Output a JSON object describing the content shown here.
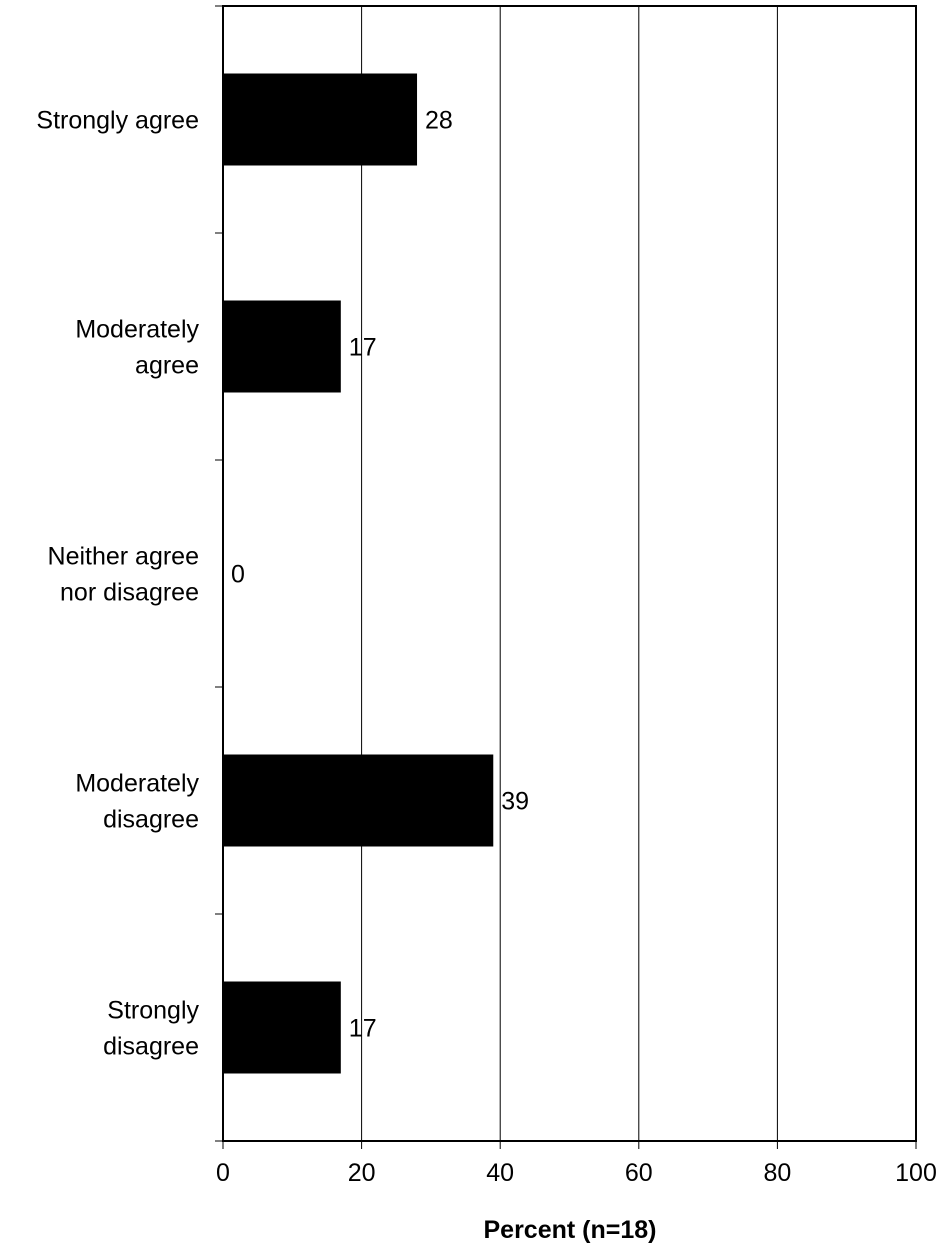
{
  "chart_data": {
    "type": "bar",
    "orientation": "horizontal",
    "categories": [
      [
        "Strongly agree"
      ],
      [
        "Moderately",
        "agree"
      ],
      [
        "Neither agree",
        "nor disagree"
      ],
      [
        "Moderately",
        "disagree"
      ],
      [
        "Strongly",
        "disagree"
      ]
    ],
    "values": [
      28,
      17,
      0,
      39,
      17
    ],
    "data_labels": [
      "28",
      "17",
      "0",
      "39",
      "17"
    ],
    "xlabel": "Percent (n=18)",
    "xlim": [
      0,
      100
    ],
    "xticks": [
      0,
      20,
      40,
      60,
      80,
      100
    ],
    "grid": "vertical",
    "legend": "none",
    "bar_color": "#000000"
  }
}
